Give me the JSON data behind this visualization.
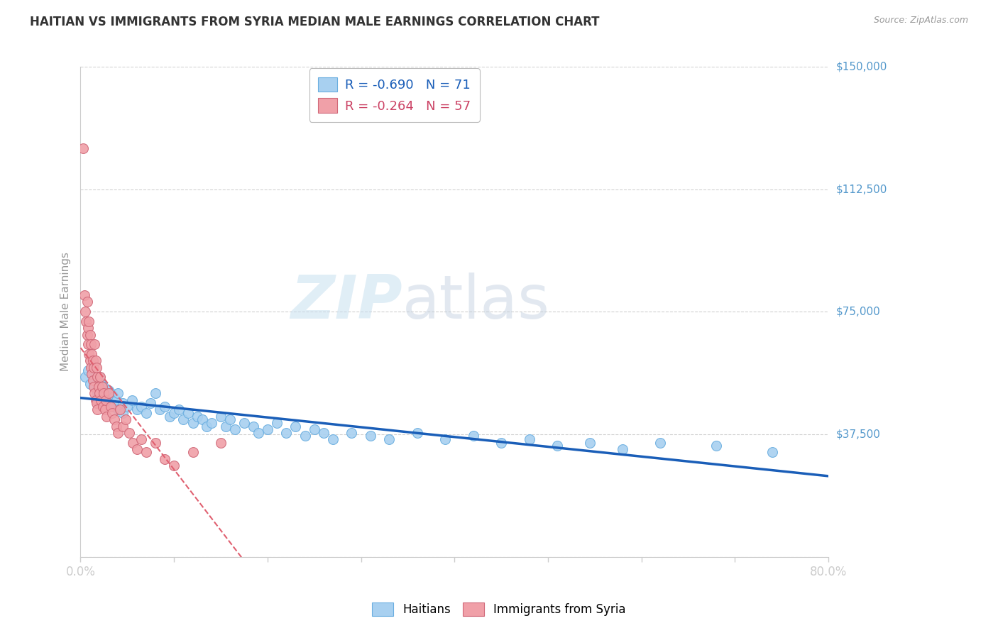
{
  "title": "HAITIAN VS IMMIGRANTS FROM SYRIA MEDIAN MALE EARNINGS CORRELATION CHART",
  "source": "Source: ZipAtlas.com",
  "ylabel": "Median Male Earnings",
  "y_ticks": [
    0,
    37500,
    75000,
    112500,
    150000
  ],
  "y_tick_labels": [
    "",
    "$37,500",
    "$75,000",
    "$112,500",
    "$150,000"
  ],
  "x_min": 0.0,
  "x_max": 0.8,
  "y_min": 0,
  "y_max": 150000,
  "series": [
    {
      "label": "Haitians",
      "color": "#a8d0f0",
      "edge_color": "#6aaee0",
      "R": -0.69,
      "N": 71,
      "trend_color": "#1a5eb8",
      "trend_style": "solid",
      "trend_lw": 2.5,
      "x": [
        0.005,
        0.008,
        0.01,
        0.012,
        0.015,
        0.015,
        0.018,
        0.02,
        0.02,
        0.022,
        0.025,
        0.025,
        0.028,
        0.03,
        0.03,
        0.032,
        0.035,
        0.035,
        0.038,
        0.04,
        0.04,
        0.045,
        0.045,
        0.05,
        0.055,
        0.06,
        0.065,
        0.07,
        0.075,
        0.08,
        0.085,
        0.09,
        0.095,
        0.1,
        0.105,
        0.11,
        0.115,
        0.12,
        0.125,
        0.13,
        0.135,
        0.14,
        0.15,
        0.155,
        0.16,
        0.165,
        0.175,
        0.185,
        0.19,
        0.2,
        0.21,
        0.22,
        0.23,
        0.24,
        0.25,
        0.26,
        0.27,
        0.29,
        0.31,
        0.33,
        0.36,
        0.39,
        0.42,
        0.45,
        0.48,
        0.51,
        0.545,
        0.58,
        0.62,
        0.68,
        0.74
      ],
      "y": [
        55000,
        57000,
        53000,
        56000,
        52000,
        54000,
        50000,
        55000,
        51000,
        53000,
        49000,
        52000,
        48000,
        51000,
        47000,
        50000,
        49000,
        46000,
        48000,
        50000,
        45000,
        47000,
        44000,
        46000,
        48000,
        45000,
        46000,
        44000,
        47000,
        50000,
        45000,
        46000,
        43000,
        44000,
        45000,
        42000,
        44000,
        41000,
        43000,
        42000,
        40000,
        41000,
        43000,
        40000,
        42000,
        39000,
        41000,
        40000,
        38000,
        39000,
        41000,
        38000,
        40000,
        37000,
        39000,
        38000,
        36000,
        38000,
        37000,
        36000,
        38000,
        36000,
        37000,
        35000,
        36000,
        34000,
        35000,
        33000,
        35000,
        34000,
        32000
      ]
    },
    {
      "label": "Immigrants from Syria",
      "color": "#f0a0a8",
      "edge_color": "#d06878",
      "R": -0.264,
      "N": 57,
      "trend_color": "#e06070",
      "trend_style": "dashed",
      "trend_lw": 1.5,
      "x": [
        0.003,
        0.004,
        0.005,
        0.006,
        0.007,
        0.007,
        0.008,
        0.008,
        0.009,
        0.009,
        0.01,
        0.01,
        0.011,
        0.011,
        0.012,
        0.012,
        0.013,
        0.013,
        0.014,
        0.014,
        0.015,
        0.015,
        0.016,
        0.016,
        0.017,
        0.017,
        0.018,
        0.018,
        0.019,
        0.02,
        0.021,
        0.022,
        0.023,
        0.024,
        0.025,
        0.026,
        0.027,
        0.028,
        0.03,
        0.032,
        0.034,
        0.036,
        0.038,
        0.04,
        0.042,
        0.045,
        0.048,
        0.052,
        0.056,
        0.06,
        0.065,
        0.07,
        0.08,
        0.09,
        0.1,
        0.12,
        0.15
      ],
      "y": [
        125000,
        80000,
        75000,
        72000,
        78000,
        68000,
        70000,
        65000,
        72000,
        62000,
        68000,
        60000,
        65000,
        58000,
        62000,
        56000,
        60000,
        54000,
        58000,
        52000,
        65000,
        50000,
        60000,
        48000,
        58000,
        47000,
        55000,
        45000,
        52000,
        50000,
        55000,
        48000,
        52000,
        46000,
        50000,
        45000,
        48000,
        43000,
        50000,
        46000,
        44000,
        42000,
        40000,
        38000,
        45000,
        40000,
        42000,
        38000,
        35000,
        33000,
        36000,
        32000,
        35000,
        30000,
        28000,
        32000,
        35000
      ]
    }
  ],
  "watermark_zip": "ZIP",
  "watermark_atlas": "atlas",
  "background_color": "#ffffff",
  "grid_color": "#cccccc",
  "grid_style": "--",
  "title_color": "#333333",
  "source_color": "#999999",
  "ylabel_color": "#999999",
  "right_label_color": "#5599cc",
  "xtick_label_color": "#5599cc",
  "legend_top_text_colors": [
    "#1a5eb8",
    "#cc4466"
  ],
  "legend_bottom_label_colors": [
    "#5599cc",
    "#cc4466"
  ]
}
